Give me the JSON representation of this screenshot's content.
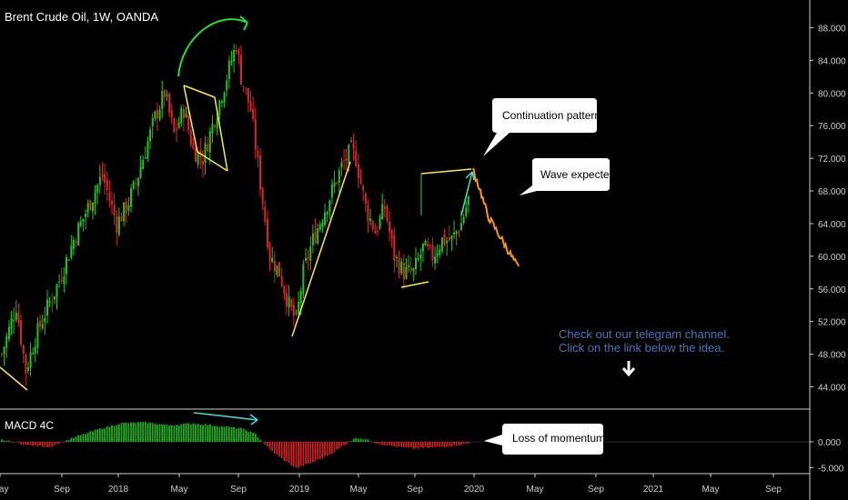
{
  "header": {
    "title": "Brent Crude Oil, 1W, OANDA"
  },
  "indicator": {
    "label": "MACD 4C"
  },
  "annotations": {
    "continuation": "Continuation pattern",
    "wave": "Wave expected",
    "momentum": "Loss of momentum",
    "promo_line1": "Check out our telegram channel.",
    "promo_line2": "Click on the link below the idea."
  },
  "colors": {
    "up": "#19c819",
    "down": "#e02424",
    "projection": "#ff9800",
    "trendline": "#ffeb3b",
    "arrow_green": "#22e022",
    "arrow_cyan": "#40e0d0",
    "macd_up": "#19b019",
    "macd_down": "#c81e1e"
  },
  "chart_data": {
    "type": "candlestick",
    "price_axis": {
      "ticks": [
        "88.000",
        "84.000",
        "80.000",
        "76.000",
        "72.000",
        "68.000",
        "64.000",
        "60.000",
        "56.000",
        "52.000",
        "48.000",
        "44.000"
      ],
      "range": [
        41.5,
        90.5
      ]
    },
    "macd_axis": {
      "ticks": [
        "0.000",
        "-5.000"
      ],
      "range": [
        -6,
        6
      ]
    },
    "time_axis": {
      "ticks": [
        "May",
        "Sep",
        "2018",
        "May",
        "Sep",
        "2019",
        "May",
        "Sep",
        "2020",
        "May",
        "Sep",
        "2021",
        "May",
        "Sep"
      ]
    },
    "price_keypoints": [
      [
        0,
        48
      ],
      [
        6,
        54
      ],
      [
        10,
        46
      ],
      [
        14,
        50
      ],
      [
        18,
        53
      ],
      [
        24,
        57
      ],
      [
        30,
        62
      ],
      [
        36,
        66
      ],
      [
        42,
        70
      ],
      [
        48,
        64
      ],
      [
        52,
        66
      ],
      [
        56,
        69
      ],
      [
        60,
        73
      ],
      [
        64,
        77
      ],
      [
        68,
        80
      ],
      [
        72,
        75
      ],
      [
        76,
        78
      ],
      [
        80,
        73
      ],
      [
        84,
        72
      ],
      [
        88,
        76
      ],
      [
        92,
        80
      ],
      [
        96,
        84
      ],
      [
        98,
        86
      ],
      [
        100,
        82
      ],
      [
        104,
        78
      ],
      [
        108,
        69
      ],
      [
        112,
        60
      ],
      [
        116,
        58
      ],
      [
        120,
        54
      ],
      [
        123,
        52
      ],
      [
        126,
        58
      ],
      [
        130,
        62
      ],
      [
        134,
        65
      ],
      [
        138,
        68
      ],
      [
        142,
        71
      ],
      [
        146,
        73
      ],
      [
        148,
        72
      ],
      [
        152,
        66
      ],
      [
        156,
        63
      ],
      [
        160,
        66
      ],
      [
        164,
        60
      ],
      [
        168,
        58
      ],
      [
        172,
        58
      ],
      [
        176,
        61
      ],
      [
        180,
        60
      ],
      [
        184,
        62
      ],
      [
        188,
        62
      ],
      [
        192,
        64
      ],
      [
        195,
        67
      ]
    ],
    "projection_keypoints": [
      [
        197,
        70.5
      ],
      [
        200,
        68
      ],
      [
        203,
        65
      ],
      [
        206,
        63.5
      ],
      [
        209,
        62
      ],
      [
        212,
        60.5
      ],
      [
        216,
        58.5
      ]
    ],
    "macd_keypoints": [
      [
        0,
        0.4
      ],
      [
        10,
        -0.6
      ],
      [
        20,
        -1.0
      ],
      [
        30,
        0.8
      ],
      [
        40,
        2.4
      ],
      [
        50,
        3.6
      ],
      [
        60,
        3.8
      ],
      [
        70,
        3.2
      ],
      [
        80,
        3.6
      ],
      [
        90,
        3.1
      ],
      [
        100,
        2.6
      ],
      [
        106,
        1.5
      ],
      [
        112,
        -1.5
      ],
      [
        118,
        -3.6
      ],
      [
        123,
        -5.1
      ],
      [
        130,
        -4.0
      ],
      [
        138,
        -2.2
      ],
      [
        144,
        -0.4
      ],
      [
        148,
        0.8
      ],
      [
        152,
        0.5
      ],
      [
        156,
        -0.2
      ],
      [
        164,
        -0.9
      ],
      [
        172,
        -1.3
      ],
      [
        180,
        -1.1
      ],
      [
        188,
        -0.8
      ],
      [
        195,
        -0.3
      ]
    ]
  }
}
